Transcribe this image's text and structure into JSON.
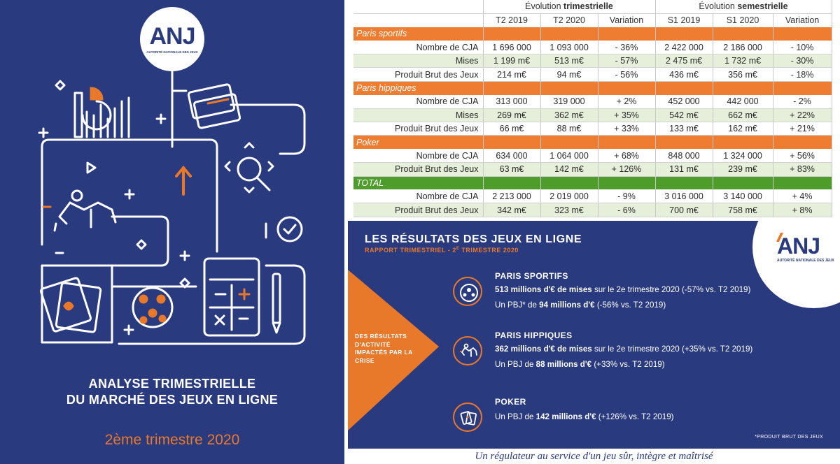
{
  "cover": {
    "logo": {
      "text": "ANJ",
      "subtitle": "AUTORITÉ NATIONALE DES JEUX"
    },
    "title_line1": "ANALYSE TRIMESTRIELLE",
    "title_line2": "DU MARCHÉ DES JEUX EN LIGNE",
    "subtitle": "2ème trimestre 2020",
    "colors": {
      "background": "#2a3a7e",
      "accent": "#e8782a"
    }
  },
  "table": {
    "group_headers": {
      "quarterly_prefix": "Évolution ",
      "quarterly_bold": "trimestrielle",
      "semester_prefix": "Évolution ",
      "semester_bold": "semestrielle"
    },
    "columns": [
      "T2 2019",
      "T2 2020",
      "Variation",
      "S1 2019",
      "S1 2020",
      "Variation"
    ],
    "sections": [
      {
        "name": "Paris sportifs",
        "style": "orange",
        "rows": [
          {
            "label": "Nombre de CJA",
            "values": [
              "1 696 000",
              "1 093 000",
              "- 36%",
              "2 422 000",
              "2 186 000",
              "- 10%"
            ]
          },
          {
            "label": "Mises",
            "values": [
              "1 199 m€",
              "513 m€",
              "- 57%",
              "2 475 m€",
              "1 732 m€",
              "- 30%"
            ]
          },
          {
            "label": "Produit Brut des Jeux",
            "values": [
              "214 m€",
              "94 m€",
              "- 56%",
              "436 m€",
              "356 m€",
              "- 18%"
            ]
          }
        ]
      },
      {
        "name": "Paris hippiques",
        "style": "orange",
        "rows": [
          {
            "label": "Nombre de CJA",
            "values": [
              "313 000",
              "319 000",
              "+ 2%",
              "452 000",
              "442 000",
              "- 2%"
            ]
          },
          {
            "label": "Mises",
            "values": [
              "269 m€",
              "362 m€",
              "+ 35%",
              "542 m€",
              "662 m€",
              "+ 22%"
            ]
          },
          {
            "label": "Produit Brut des Jeux",
            "values": [
              "66 m€",
              "88 m€",
              "+ 33%",
              "133 m€",
              "162 m€",
              "+ 21%"
            ]
          }
        ]
      },
      {
        "name": "Poker",
        "style": "orange",
        "rows": [
          {
            "label": "Nombre de CJA",
            "values": [
              "634 000",
              "1 064 000",
              "+ 68%",
              "848 000",
              "1 324 000",
              "+ 56%"
            ]
          },
          {
            "label": "Produit Brut des Jeux",
            "values": [
              "63 m€",
              "142 m€",
              "+ 126%",
              "131 m€",
              "239 m€",
              "+ 83%"
            ]
          }
        ]
      },
      {
        "name": "TOTAL",
        "style": "green",
        "rows": [
          {
            "label": "Nombre de CJA",
            "values": [
              "2 213 000",
              "2 019 000",
              "- 9%",
              "3 016 000",
              "3 140 000",
              "+ 4%"
            ]
          },
          {
            "label": "Produit Brut des Jeux",
            "values": [
              "342 m€",
              "323 m€",
              "- 6%",
              "700 m€",
              "758 m€",
              "+ 8%"
            ]
          }
        ]
      }
    ]
  },
  "banner": {
    "title": "LES RÉSULTATS DES JEUX EN LIGNE",
    "subtitle_prefix": "RAPPORT TRIMESTRIEL - 2",
    "subtitle_sup": "E",
    "subtitle_suffix": " TRIMESTRE 2020",
    "logo": {
      "text": "ANJ",
      "subtitle": "AUTORITÉ NATIONALE DES JEUX"
    },
    "arrow_text": "DES RÉSULTATS D'ACTIVITÉ IMPACTÉS PAR LA CRISE",
    "categories": [
      {
        "title": "PARIS SPORTIFS",
        "icon": "football-icon",
        "line1_bold": "513 millions d'€ de mises",
        "line1_rest": " sur le 2e trimestre 2020 (-57% vs. T2 2019)",
        "line2_pre": "Un PBJ* de ",
        "line2_bold": "94 millions d'€",
        "line2_rest": " (-56% vs. T2 2019)"
      },
      {
        "title": "PARIS HIPPIQUES",
        "icon": "horse-rider-icon",
        "line1_bold": "362 millions d'€ de mises",
        "line1_rest": " sur le 2e trimestre 2020 (+35% vs. T2 2019)",
        "line2_pre": "Un PBJ de ",
        "line2_bold": "88 millions d'€",
        "line2_rest": " (+33% vs. T2 2019)"
      },
      {
        "title": "POKER",
        "icon": "playing-cards-icon",
        "line1_pre": "Un PBJ de ",
        "line1_bold": "142 millions d'€",
        "line1_rest": " (+126% vs. T2 2019)"
      }
    ],
    "footnote": "*PRODUIT BRUT DES JEUX"
  },
  "slogan": "Un régulateur au service d'un jeu sûr, intègre et maîtrisé"
}
